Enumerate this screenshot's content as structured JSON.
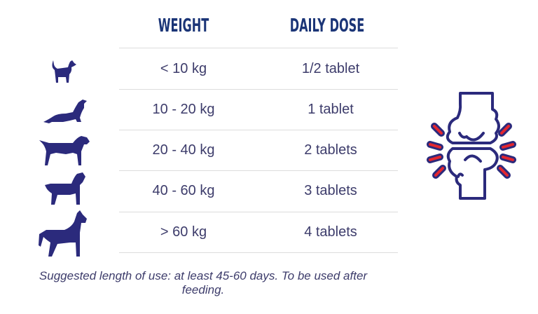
{
  "table": {
    "headers": {
      "weight": "WEIGHT",
      "dose": "DAILY DOSE"
    },
    "rows": [
      {
        "dog_icon": "small-dog-icon",
        "weight": "< 10 kg",
        "dose": "1/2 tablet"
      },
      {
        "dog_icon": "dachshund-icon",
        "weight": "10 - 20 kg",
        "dose": "1 tablet"
      },
      {
        "dog_icon": "pointer-dog-icon",
        "weight": "20 - 40 kg",
        "dose": "2 tablets"
      },
      {
        "dog_icon": "rottweiler-icon",
        "weight": "40 - 60 kg",
        "dose": "3 tablets"
      },
      {
        "dog_icon": "great-dane-icon",
        "weight": "> 60 kg",
        "dose": "4 tablets"
      }
    ]
  },
  "note": "Suggested length of use: at least 45-60 days. To be used after feeding.",
  "icons": {
    "joint": "joint-pain-icon"
  },
  "colors": {
    "heading": "#1b3577",
    "text": "#3d3c6b",
    "icon_navy": "#2b2a7c",
    "accent_red": "#e3262f"
  }
}
